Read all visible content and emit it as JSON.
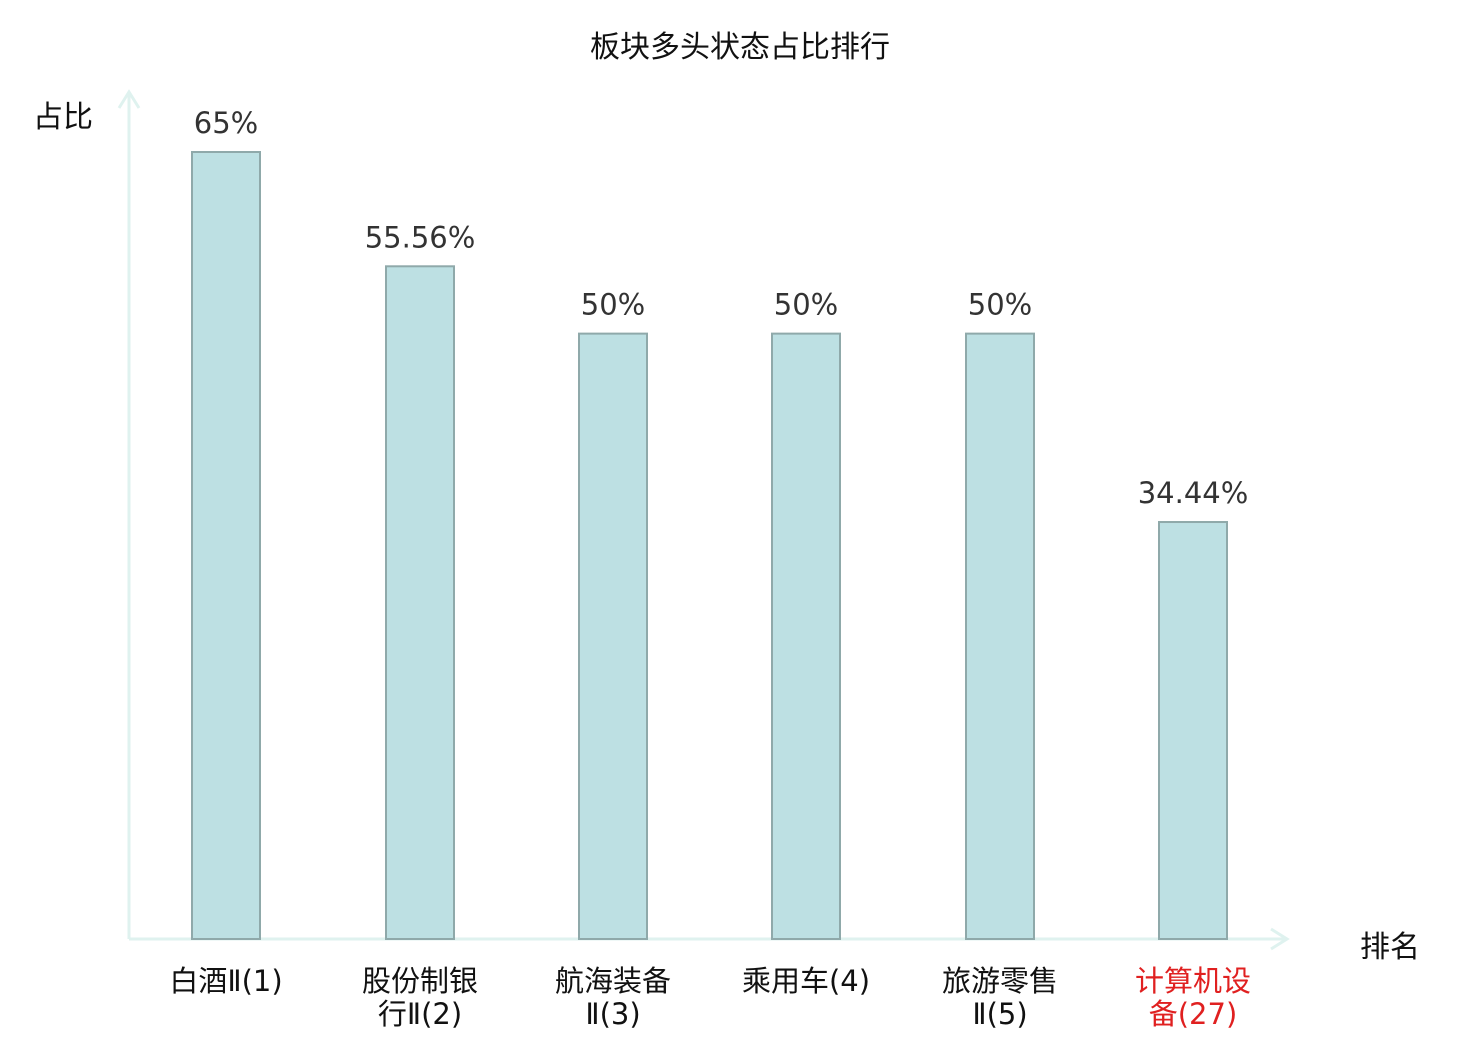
{
  "chart_data": {
    "type": "bar",
    "title": "板块多头状态占比排行",
    "ylabel": "占比",
    "xlabel": "排名",
    "categories": [
      "白酒Ⅱ(1)",
      "股份制银行Ⅱ(2)",
      "航海装备Ⅱ(3)",
      "乘用车(4)",
      "旅游零售Ⅱ(5)",
      "计算机设备(27)"
    ],
    "category_lines": [
      [
        "白酒Ⅱ(1)"
      ],
      [
        "股份制银",
        "行Ⅱ(2)"
      ],
      [
        "航海装备",
        "Ⅱ(3)"
      ],
      [
        "乘用车(4)"
      ],
      [
        "旅游零售",
        "Ⅱ(5)"
      ],
      [
        "计算机设",
        "备(27)"
      ]
    ],
    "values": [
      65,
      55.56,
      50,
      50,
      50,
      34.44
    ],
    "value_labels": [
      "65%",
      "55.56%",
      "50%",
      "50%",
      "50%",
      "34.44%"
    ],
    "highlight_index": 5,
    "ylim": [
      0,
      70
    ],
    "grid": false,
    "colors": {
      "bar_fill": "#bde0e3",
      "bar_stroke": "#8fa9aa",
      "axis": "#dff2ef",
      "highlight_text": "#e02020"
    }
  }
}
